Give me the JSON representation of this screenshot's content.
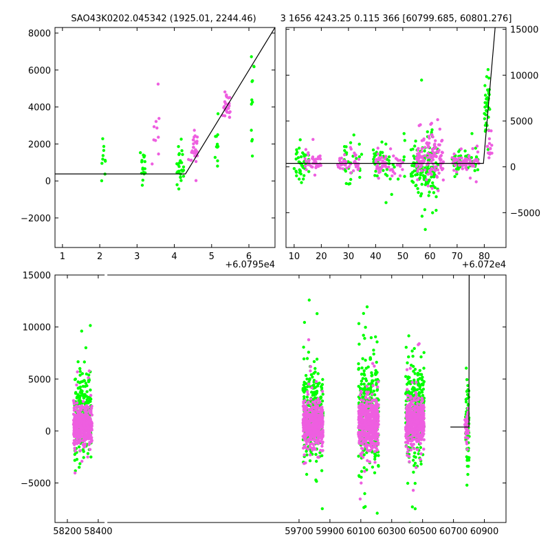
{
  "figure_title_left": "SAO43K0202.045342 (1925.01, 2244.46)",
  "figure_title_right": "3 1656 4243.25 0.115 366 [60799.685, 60801.276]",
  "colors": {
    "green": "#00ff00",
    "pink": "#ee5ee0",
    "line": "#000000"
  },
  "chart_data": [
    {
      "id": "top-left",
      "type": "scatter",
      "title": "SAO43K0202.045342 (1925.01, 2244.46)",
      "xlim": [
        0.8,
        6.7
      ],
      "ylim": [
        -3600,
        8300
      ],
      "xticks": [
        1,
        2,
        3,
        4,
        5,
        6
      ],
      "xtick_labels": [
        "1",
        "2",
        "3",
        "4",
        "5",
        "6"
      ],
      "yticks": [
        -2000,
        0,
        2000,
        4000,
        6000,
        8000
      ],
      "ytick_labels": [
        "−2000",
        "0",
        "2000",
        "4000",
        "6000",
        "8000"
      ],
      "x_offset_label": "+6.0795e4",
      "fit_line": [
        [
          0.8,
          380
        ],
        [
          4.3,
          380
        ],
        [
          6.7,
          8300
        ]
      ],
      "series": [
        {
          "name": "green",
          "color": "#00ff00",
          "clusters": [
            [
              2.1,
              1500,
              0.05,
              900,
              10
            ],
            [
              3.15,
              900,
              0.08,
              1100,
              16
            ],
            [
              4.15,
              700,
              0.1,
              900,
              28
            ],
            [
              5.1,
              2000,
              0.08,
              1000,
              12
            ],
            [
              6.1,
              5000,
              0.05,
              2200,
              12
            ]
          ]
        },
        {
          "name": "pink",
          "color": "#ee5ee0",
          "clusters": [
            [
              3.5,
              2800,
              0.1,
              1700,
              10
            ],
            [
              4.5,
              1700,
              0.12,
              700,
              30
            ],
            [
              5.4,
              3900,
              0.1,
              700,
              26
            ]
          ]
        }
      ]
    },
    {
      "id": "top-right",
      "type": "scatter",
      "title": "3 1656 4243.25 0.115 366 [60799.685, 60801.276]",
      "xlim": [
        7,
        88
      ],
      "ylim": [
        -8800,
        15200
      ],
      "xticks": [
        10,
        20,
        30,
        40,
        50,
        60,
        70,
        80
      ],
      "xtick_labels": [
        "10",
        "20",
        "30",
        "40",
        "50",
        "60",
        "70",
        "80"
      ],
      "yticks": [
        -5000,
        0,
        5000,
        10000,
        15000
      ],
      "ytick_labels": [
        "−5000",
        "0",
        "5000",
        "10000",
        "15000"
      ],
      "x_offset_label": "+6.072e4",
      "fit_line": [
        [
          7,
          380
        ],
        [
          79.7,
          380
        ],
        [
          84,
          15200
        ]
      ],
      "series": [
        {
          "name": "green",
          "color": "#00ff00",
          "clusters": [
            [
              13,
              500,
              3,
              1500,
              45
            ],
            [
              31,
              400,
              4,
              1800,
              30
            ],
            [
              45,
              500,
              6,
              1500,
              45
            ],
            [
              58,
              0,
              5,
              2500,
              140
            ],
            [
              73,
              400,
              5,
              1200,
              55
            ],
            [
              81,
              7000,
              1,
              3000,
              35
            ]
          ]
        },
        {
          "name": "pink",
          "color": "#ee5ee0",
          "clusters": [
            [
              17,
              400,
              3,
              900,
              40
            ],
            [
              30,
              400,
              4,
              900,
              45
            ],
            [
              45,
              400,
              5,
              900,
              55
            ],
            [
              60,
              800,
              5,
              1800,
              130
            ],
            [
              73,
              500,
              5,
              800,
              60
            ],
            [
              82,
              2500,
              1,
              1500,
              15
            ]
          ]
        }
      ]
    },
    {
      "id": "bottom",
      "type": "scatter",
      "title": "",
      "xlim": [
        58120,
        61040
      ],
      "ylim": [
        -8800,
        15000
      ],
      "xticks": [
        58200,
        58400,
        59700,
        59900,
        60100,
        60300,
        60500,
        60700,
        60900
      ],
      "xtick_labels": [
        "58200",
        "58400",
        "59700",
        "59900",
        "60100",
        "60300",
        "60500",
        "60700",
        "60900"
      ],
      "yticks": [
        -5000,
        0,
        5000,
        10000,
        15000
      ],
      "ytick_labels": [
        "−5000",
        "0",
        "5000",
        "10000",
        "15000"
      ],
      "x_offset_label": "",
      "fit_line": [
        [
          60680,
          380
        ],
        [
          60800,
          380
        ],
        [
          60801.5,
          15000
        ]
      ],
      "series": [
        {
          "name": "green",
          "color": "#00ff00",
          "clusters": [
            [
              58300,
              1500,
              55,
              3500,
              260
            ],
            [
              59790,
              1500,
              65,
              3800,
              280
            ],
            [
              60150,
              1800,
              65,
              4500,
              320
            ],
            [
              60450,
              1700,
              60,
              3800,
              280
            ],
            [
              60790,
              500,
              12,
              3500,
              70
            ]
          ]
        },
        {
          "name": "pink",
          "color": "#ee5ee0",
          "clusters": [
            [
              58300,
              500,
              60,
              1500,
              420
            ],
            [
              59790,
              600,
              65,
              1700,
              460
            ],
            [
              60150,
              800,
              65,
              2000,
              520
            ],
            [
              60450,
              800,
              60,
              1700,
              460
            ],
            [
              60785,
              500,
              12,
              1000,
              40
            ]
          ]
        }
      ]
    }
  ]
}
